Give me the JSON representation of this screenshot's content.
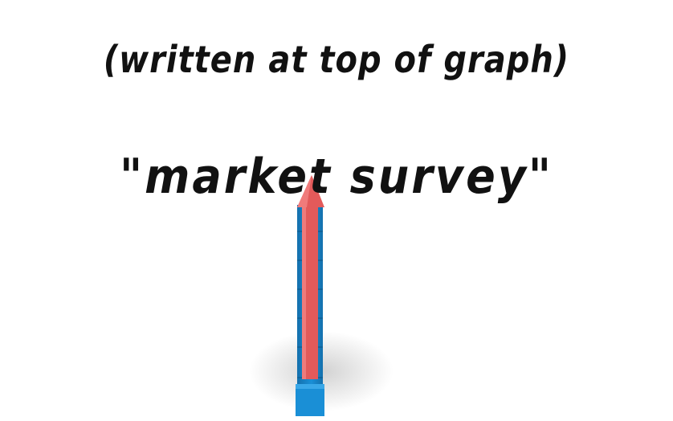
{
  "captions": {
    "top_note": "(written at top of graph)",
    "main_title": "\"market survey\""
  },
  "illustration": {
    "icon": "rising-arrow-on-bar-icon",
    "arrow_color": "#e35a5a",
    "bar_color": "#1a8fd6",
    "bar_shade_color": "#1470ad"
  }
}
